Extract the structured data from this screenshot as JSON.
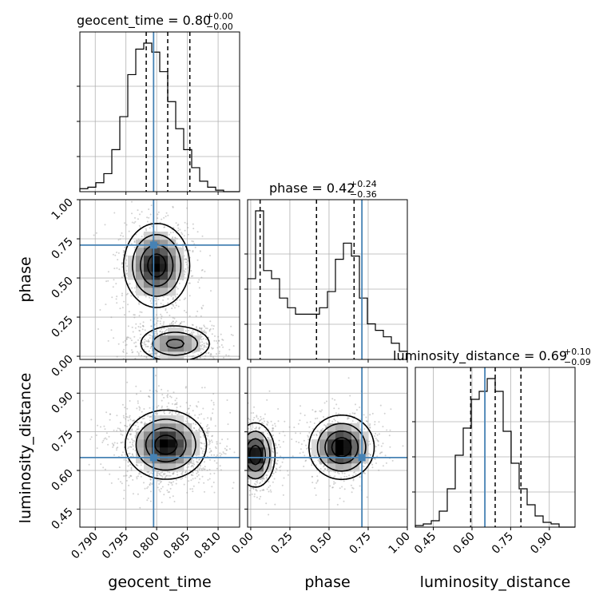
{
  "chart_data": {
    "type": "corner",
    "params": [
      "geocent_time",
      "phase",
      "luminosity_distance"
    ],
    "titles": [
      {
        "param": "geocent_time",
        "text": "geocent_time = 0.80",
        "plus": "+0.00",
        "minus": "−0.00"
      },
      {
        "param": "phase",
        "text": "phase = 0.42",
        "plus": "+0.24",
        "minus": "−0.36"
      },
      {
        "param": "luminosity_distance",
        "text": "luminosity_distance = 0.69",
        "plus": "+0.10",
        "minus": "−0.09"
      }
    ],
    "axis_labels": {
      "x": [
        "geocent_time",
        "phase",
        "luminosity_distance"
      ],
      "y": [
        "phase",
        "luminosity_distance"
      ]
    },
    "ranges": {
      "geocent_time": [
        0.7875,
        0.8135
      ],
      "phase": [
        -0.02,
        1.0
      ],
      "luminosity_distance": [
        0.38,
        1.0
      ]
    },
    "ticks": {
      "geocent_time": [
        0.79,
        0.795,
        0.8,
        0.805,
        0.81
      ],
      "phase": [
        0.0,
        0.25,
        0.5,
        0.75,
        1.0
      ],
      "luminosity_distance": [
        0.45,
        0.6,
        0.75,
        0.9
      ]
    },
    "tick_labels": {
      "geocent_time": [
        "0.790",
        "0.795",
        "0.800",
        "0.805",
        "0.810"
      ],
      "phase": [
        "0.00",
        "0.25",
        "0.50",
        "0.75",
        "1.00"
      ],
      "luminosity_distance": [
        "0.45",
        "0.60",
        "0.75",
        "0.90"
      ]
    },
    "truths": {
      "geocent_time": 0.7995,
      "phase": 0.71,
      "luminosity_distance": 0.65
    },
    "quantiles": {
      "geocent_time": [
        0.7983,
        0.8018,
        0.8054
      ],
      "phase": [
        0.06,
        0.42,
        0.66
      ],
      "luminosity_distance": [
        0.595,
        0.69,
        0.79
      ]
    },
    "histograms": {
      "geocent_time": {
        "range": [
          0.7875,
          0.8135
        ],
        "values": [
          0.02,
          0.03,
          0.06,
          0.12,
          0.28,
          0.5,
          0.78,
          0.95,
          0.99,
          0.93,
          0.8,
          0.6,
          0.42,
          0.28,
          0.16,
          0.07,
          0.03,
          0.01,
          0.0,
          0.0
        ]
      },
      "phase": {
        "range": [
          -0.02,
          1.0
        ],
        "values": [
          0.5,
          0.92,
          0.55,
          0.5,
          0.38,
          0.32,
          0.28,
          0.28,
          0.28,
          0.32,
          0.42,
          0.62,
          0.72,
          0.64,
          0.38,
          0.22,
          0.18,
          0.14,
          0.1,
          0.05
        ]
      },
      "luminosity_distance": {
        "range": [
          0.38,
          1.0
        ],
        "values": [
          0.01,
          0.02,
          0.04,
          0.1,
          0.24,
          0.45,
          0.62,
          0.8,
          0.85,
          0.93,
          0.85,
          0.6,
          0.4,
          0.24,
          0.14,
          0.07,
          0.03,
          0.02,
          0.0,
          0.0
        ]
      }
    },
    "density_modes": {
      "geocent_time|phase": [
        {
          "x": 0.8,
          "y": 0.58,
          "sx": 0.0026,
          "sy": 0.13,
          "w": 0.6
        },
        {
          "x": 0.803,
          "y": 0.08,
          "sx": 0.003,
          "sy": 0.06,
          "w": 0.4
        }
      ],
      "geocent_time|luminosity_distance": [
        {
          "x": 0.8015,
          "y": 0.7,
          "sx": 0.0032,
          "sy": 0.065,
          "w": 1.0
        }
      ],
      "phase|luminosity_distance": [
        {
          "x": 0.03,
          "y": 0.66,
          "sx": 0.06,
          "sy": 0.06,
          "w": 0.5
        },
        {
          "x": 0.58,
          "y": 0.69,
          "sx": 0.1,
          "sy": 0.06,
          "w": 0.5
        }
      ]
    },
    "colors": {
      "truth": "#4682b4",
      "contour": "#000000",
      "grid": "#b0b0b0",
      "scatter": "#9a9a9a"
    },
    "grid": true,
    "legend": false
  }
}
